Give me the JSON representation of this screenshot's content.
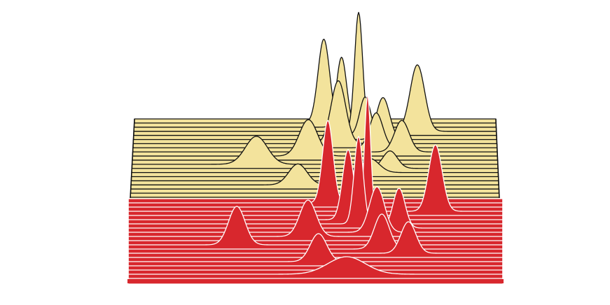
{
  "chart_data": {
    "type": "ridgeline",
    "xlim": [
      0,
      100
    ],
    "groups": [
      {
        "color": "#f3e39c",
        "stroke": "#111111",
        "ridges": [
          {
            "peaks": []
          },
          {
            "peaks": [
              {
                "x": 52.4,
                "h": 120,
                "w": 1.6
              }
            ]
          },
          {
            "peaks": [
              {
                "x": 57.3,
                "h": 100,
                "w": 1.4
              }
            ]
          },
          {
            "peaks": [
              {
                "x": 62,
                "h": 170,
                "w": 1.1
              },
              {
                "x": 78.2,
                "h": 95,
                "w": 2
              }
            ]
          },
          {
            "peaks": [
              {
                "x": 63.8,
                "h": 55,
                "w": 1.5
              }
            ]
          },
          {
            "peaks": [
              {
                "x": 68.7,
                "h": 60,
                "w": 1.8
              }
            ]
          },
          {
            "peaks": [
              {
                "x": 56.4,
                "h": 90,
                "w": 2
              }
            ]
          },
          {
            "peaks": [
              {
                "x": 66.8,
                "h": 50,
                "w": 1.8
              }
            ]
          },
          {
            "peaks": [
              {
                "x": 73.8,
                "h": 45,
                "w": 2
              }
            ]
          },
          {
            "peaks": [
              {
                "x": 48.2,
                "h": 52,
                "w": 2.5
              }
            ]
          },
          {
            "peaks": []
          },
          {
            "peaks": [
              {
                "x": 34,
                "h": 40,
                "w": 3
              }
            ]
          },
          {
            "peaks": [
              {
                "x": 70.5,
                "h": 25,
                "w": 2
              }
            ]
          },
          {
            "peaks": [
              {
                "x": 65,
                "h": 20,
                "w": 2.5
              }
            ]
          },
          {
            "peaks": []
          },
          {
            "peaks": []
          },
          {
            "peaks": [
              {
                "x": 45.4,
                "h": 30,
                "w": 2.5
              }
            ]
          },
          {
            "peaks": []
          },
          {
            "peaks": []
          },
          {
            "peaks": []
          }
        ]
      },
      {
        "color": "#d8272d",
        "stroke": "#ffffff",
        "ridges": [
          {
            "peaks": []
          },
          {
            "peaks": [
              {
                "x": 53.3,
                "h": 118,
                "w": 1.4
              }
            ]
          },
          {
            "peaks": []
          },
          {
            "peaks": [
              {
                "x": 63.9,
                "h": 167,
                "w": 0.8
              },
              {
                "x": 82,
                "h": 95,
                "w": 1.8
              }
            ]
          },
          {
            "peaks": []
          },
          {
            "peaks": [
              {
                "x": 58.7,
                "h": 100,
                "w": 1.5
              }
            ]
          },
          {
            "peaks": [
              {
                "x": 61.5,
                "h": 125,
                "w": 1.2
              }
            ]
          },
          {
            "peaks": [
              {
                "x": 72.3,
                "h": 57,
                "w": 1.6
              }
            ]
          },
          {
            "peaks": [
              {
                "x": 66.4,
                "h": 65,
                "w": 2
              }
            ]
          },
          {
            "peaks": [
              {
                "x": 48,
                "h": 52,
                "w": 2.2
              }
            ]
          },
          {
            "peaks": []
          },
          {
            "peaks": [
              {
                "x": 29,
                "h": 55,
                "w": 2.2
              }
            ]
          },
          {
            "peaks": [
              {
                "x": 67.7,
                "h": 50,
                "w": 2
              }
            ]
          },
          {
            "peaks": [
              {
                "x": 74.8,
                "h": 45,
                "w": 2
              }
            ]
          },
          {
            "peaks": []
          },
          {
            "peaks": [
              {
                "x": 50.8,
                "h": 40,
                "w": 2.2
              }
            ]
          },
          {
            "peaks": []
          },
          {
            "peaks": []
          },
          {
            "peaks": [
              {
                "x": 58.3,
                "h": 25,
                "w": 5
              }
            ]
          },
          {
            "peaks": []
          }
        ]
      }
    ]
  }
}
